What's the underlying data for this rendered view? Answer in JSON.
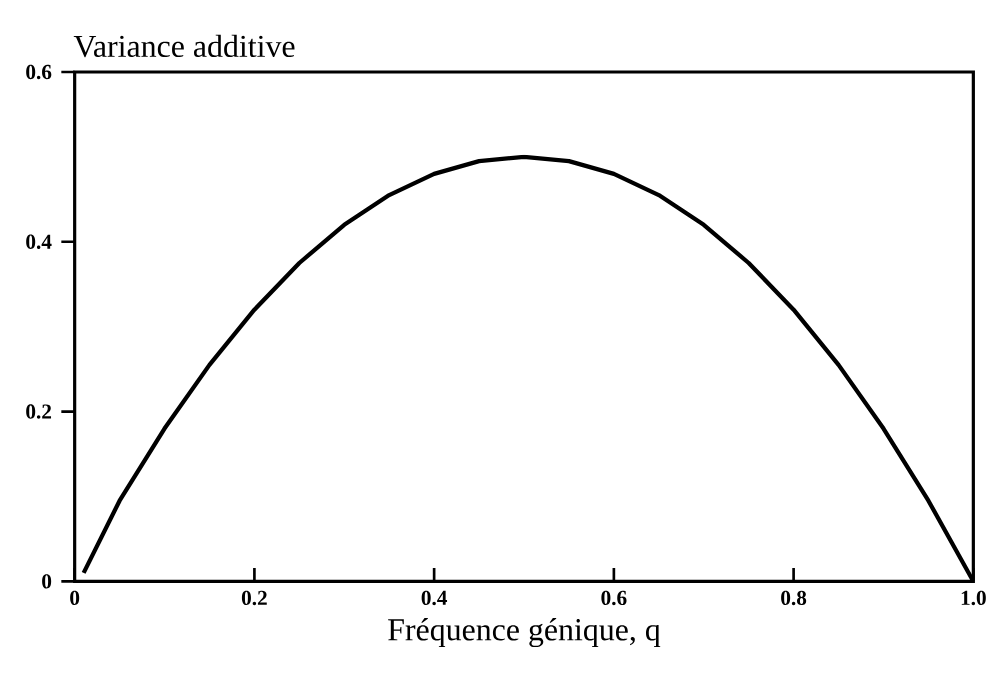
{
  "chart_data": {
    "type": "line",
    "ylabel": "Variance additive",
    "xlabel": "Fréquence génique, q",
    "x": [
      0.01,
      0.05,
      0.1,
      0.15,
      0.2,
      0.25,
      0.3,
      0.35,
      0.4,
      0.45,
      0.5,
      0.55,
      0.6,
      0.65,
      0.7,
      0.75,
      0.8,
      0.85,
      0.9,
      0.95,
      1.0
    ],
    "values": [
      0.01,
      0.095,
      0.18,
      0.255,
      0.32,
      0.375,
      0.42,
      0.455,
      0.48,
      0.495,
      0.5,
      0.495,
      0.48,
      0.455,
      0.42,
      0.375,
      0.32,
      0.255,
      0.18,
      0.095,
      0.0
    ],
    "color": "#000000",
    "xlim": [
      0,
      1.0
    ],
    "ylim": [
      0,
      0.6
    ],
    "xticks": [
      0,
      0.2,
      0.4,
      0.6,
      0.8,
      {
        "value": 1.0,
        "label": "1.0"
      }
    ],
    "yticks": [
      0,
      0.2,
      0.4,
      0.6
    ],
    "grid": false,
    "marker": "none",
    "line_style": "solid"
  }
}
